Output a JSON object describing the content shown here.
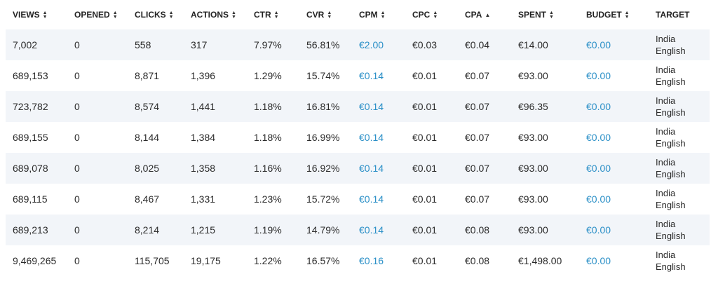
{
  "columns": [
    {
      "key": "views",
      "label": "VIEWS",
      "sort": "both"
    },
    {
      "key": "opened",
      "label": "OPENED",
      "sort": "both"
    },
    {
      "key": "clicks",
      "label": "CLICKS",
      "sort": "both"
    },
    {
      "key": "actions",
      "label": "ACTIONS",
      "sort": "both"
    },
    {
      "key": "ctr",
      "label": "CTR",
      "sort": "both"
    },
    {
      "key": "cvr",
      "label": "CVR",
      "sort": "both"
    },
    {
      "key": "cpm",
      "label": "CPM",
      "sort": "both"
    },
    {
      "key": "cpc",
      "label": "CPC",
      "sort": "both"
    },
    {
      "key": "cpa",
      "label": "CPA",
      "sort": "asc"
    },
    {
      "key": "spent",
      "label": "SPENT",
      "sort": "both"
    },
    {
      "key": "budget",
      "label": "BUDGET",
      "sort": "both"
    },
    {
      "key": "target",
      "label": "TARGET",
      "sort": "none"
    }
  ],
  "link_color": "#2a8fc7",
  "rows": [
    {
      "views": "7,002",
      "opened": "0",
      "clicks": "558",
      "actions": "317",
      "ctr": "7.97%",
      "cvr": "56.81%",
      "cpm": "€2.00",
      "cpc": "€0.03",
      "cpa": "€0.04",
      "spent": "€14.00",
      "budget": "€0.00",
      "target_country": "India",
      "target_language": "English"
    },
    {
      "views": "689,153",
      "opened": "0",
      "clicks": "8,871",
      "actions": "1,396",
      "ctr": "1.29%",
      "cvr": "15.74%",
      "cpm": "€0.14",
      "cpc": "€0.01",
      "cpa": "€0.07",
      "spent": "€93.00",
      "budget": "€0.00",
      "target_country": "India",
      "target_language": "English"
    },
    {
      "views": "723,782",
      "opened": "0",
      "clicks": "8,574",
      "actions": "1,441",
      "ctr": "1.18%",
      "cvr": "16.81%",
      "cpm": "€0.14",
      "cpc": "€0.01",
      "cpa": "€0.07",
      "spent": "€96.35",
      "budget": "€0.00",
      "target_country": "India",
      "target_language": "English"
    },
    {
      "views": "689,155",
      "opened": "0",
      "clicks": "8,144",
      "actions": "1,384",
      "ctr": "1.18%",
      "cvr": "16.99%",
      "cpm": "€0.14",
      "cpc": "€0.01",
      "cpa": "€0.07",
      "spent": "€93.00",
      "budget": "€0.00",
      "target_country": "India",
      "target_language": "English"
    },
    {
      "views": "689,078",
      "opened": "0",
      "clicks": "8,025",
      "actions": "1,358",
      "ctr": "1.16%",
      "cvr": "16.92%",
      "cpm": "€0.14",
      "cpc": "€0.01",
      "cpa": "€0.07",
      "spent": "€93.00",
      "budget": "€0.00",
      "target_country": "India",
      "target_language": "English"
    },
    {
      "views": "689,115",
      "opened": "0",
      "clicks": "8,467",
      "actions": "1,331",
      "ctr": "1.23%",
      "cvr": "15.72%",
      "cpm": "€0.14",
      "cpc": "€0.01",
      "cpa": "€0.07",
      "spent": "€93.00",
      "budget": "€0.00",
      "target_country": "India",
      "target_language": "English"
    },
    {
      "views": "689,213",
      "opened": "0",
      "clicks": "8,214",
      "actions": "1,215",
      "ctr": "1.19%",
      "cvr": "14.79%",
      "cpm": "€0.14",
      "cpc": "€0.01",
      "cpa": "€0.08",
      "spent": "€93.00",
      "budget": "€0.00",
      "target_country": "India",
      "target_language": "English"
    },
    {
      "views": "9,469,265",
      "opened": "0",
      "clicks": "115,705",
      "actions": "19,175",
      "ctr": "1.22%",
      "cvr": "16.57%",
      "cpm": "€0.16",
      "cpc": "€0.01",
      "cpa": "€0.08",
      "spent": "€1,498.00",
      "budget": "€0.00",
      "target_country": "India",
      "target_language": "English"
    }
  ]
}
